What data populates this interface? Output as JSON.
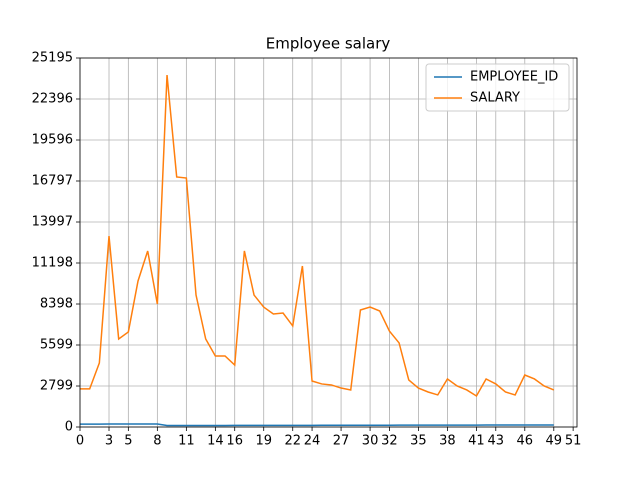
{
  "chart_data": {
    "type": "line",
    "title": "Employee salary",
    "x": [
      0,
      1,
      2,
      3,
      4,
      5,
      6,
      7,
      8,
      9,
      10,
      11,
      12,
      13,
      14,
      15,
      16,
      17,
      18,
      19,
      20,
      21,
      22,
      23,
      24,
      25,
      26,
      27,
      28,
      29,
      30,
      31,
      32,
      33,
      34,
      35,
      36,
      37,
      38,
      39,
      40,
      41,
      42,
      43,
      44,
      45,
      46,
      47,
      48,
      49
    ],
    "series": [
      {
        "name": "EMPLOYEE_ID",
        "color": "#1f77b4",
        "values": [
          198,
          199,
          200,
          201,
          202,
          203,
          204,
          205,
          206,
          100,
          101,
          102,
          103,
          104,
          105,
          106,
          107,
          108,
          109,
          110,
          111,
          112,
          113,
          114,
          115,
          116,
          117,
          118,
          119,
          120,
          121,
          122,
          123,
          124,
          125,
          126,
          127,
          128,
          129,
          130,
          131,
          132,
          133,
          134,
          135,
          136,
          137,
          138,
          139,
          140
        ]
      },
      {
        "name": "SALARY",
        "color": "#ff7f0e",
        "values": [
          2600,
          2600,
          4370,
          13040,
          6010,
          6490,
          9970,
          12020,
          8400,
          24030,
          17070,
          17000,
          9010,
          6010,
          4850,
          4850,
          4230,
          12020,
          9010,
          8190,
          7720,
          7780,
          6900,
          10990,
          3140,
          2940,
          2870,
          2660,
          2530,
          7990,
          8190,
          7920,
          6550,
          5740,
          3210,
          2660,
          2390,
          2190,
          3280,
          2800,
          2530,
          2120,
          3280,
          2940,
          2390,
          2190,
          3550,
          3280,
          2800,
          2530
        ]
      }
    ],
    "xlim": [
      0,
      51.4
    ],
    "xticks": [
      0,
      3,
      5,
      8,
      11,
      14,
      16,
      19,
      22,
      24,
      27,
      30,
      32,
      35,
      38,
      41,
      43,
      46,
      49,
      51
    ],
    "ylim": [
      0,
      25195
    ],
    "yticks": [
      0,
      2799,
      5599,
      8398,
      11198,
      13997,
      16797,
      19596,
      22396,
      25195
    ],
    "grid": true,
    "legend": "upper right"
  }
}
